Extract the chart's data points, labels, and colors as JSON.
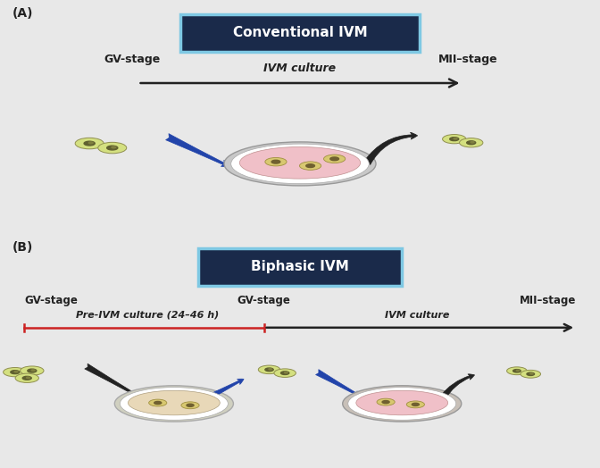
{
  "bg_color": "#e8e8e8",
  "title_A": "Conventional IVM",
  "title_B": "Biphasic IVM",
  "label_A": "(A)",
  "label_B": "(B)",
  "title_bg": "#1a2a4a",
  "title_border": "#7ec8e3",
  "title_text": "#ffffff",
  "gv_label": "GV-stage",
  "mii_label": "MII–stage",
  "ivm_label": "IVM culture",
  "pre_ivm_label": "Pre-IVM culture (24–46 h)",
  "oocyte_color": "#d4e080",
  "oocyte_border": "#909050",
  "oocyte_nucleus": "#606030",
  "dish_rim": "#d0d0d0",
  "dish_fill_A": "#f0c0c8",
  "dish_fill_B1": "#e8e8d8",
  "dish_fill_B2": "#f0c0c8",
  "arrow_black": "#222222",
  "arrow_blue": "#2244aa",
  "arrow_red": "#cc2222",
  "text_color": "#222222"
}
